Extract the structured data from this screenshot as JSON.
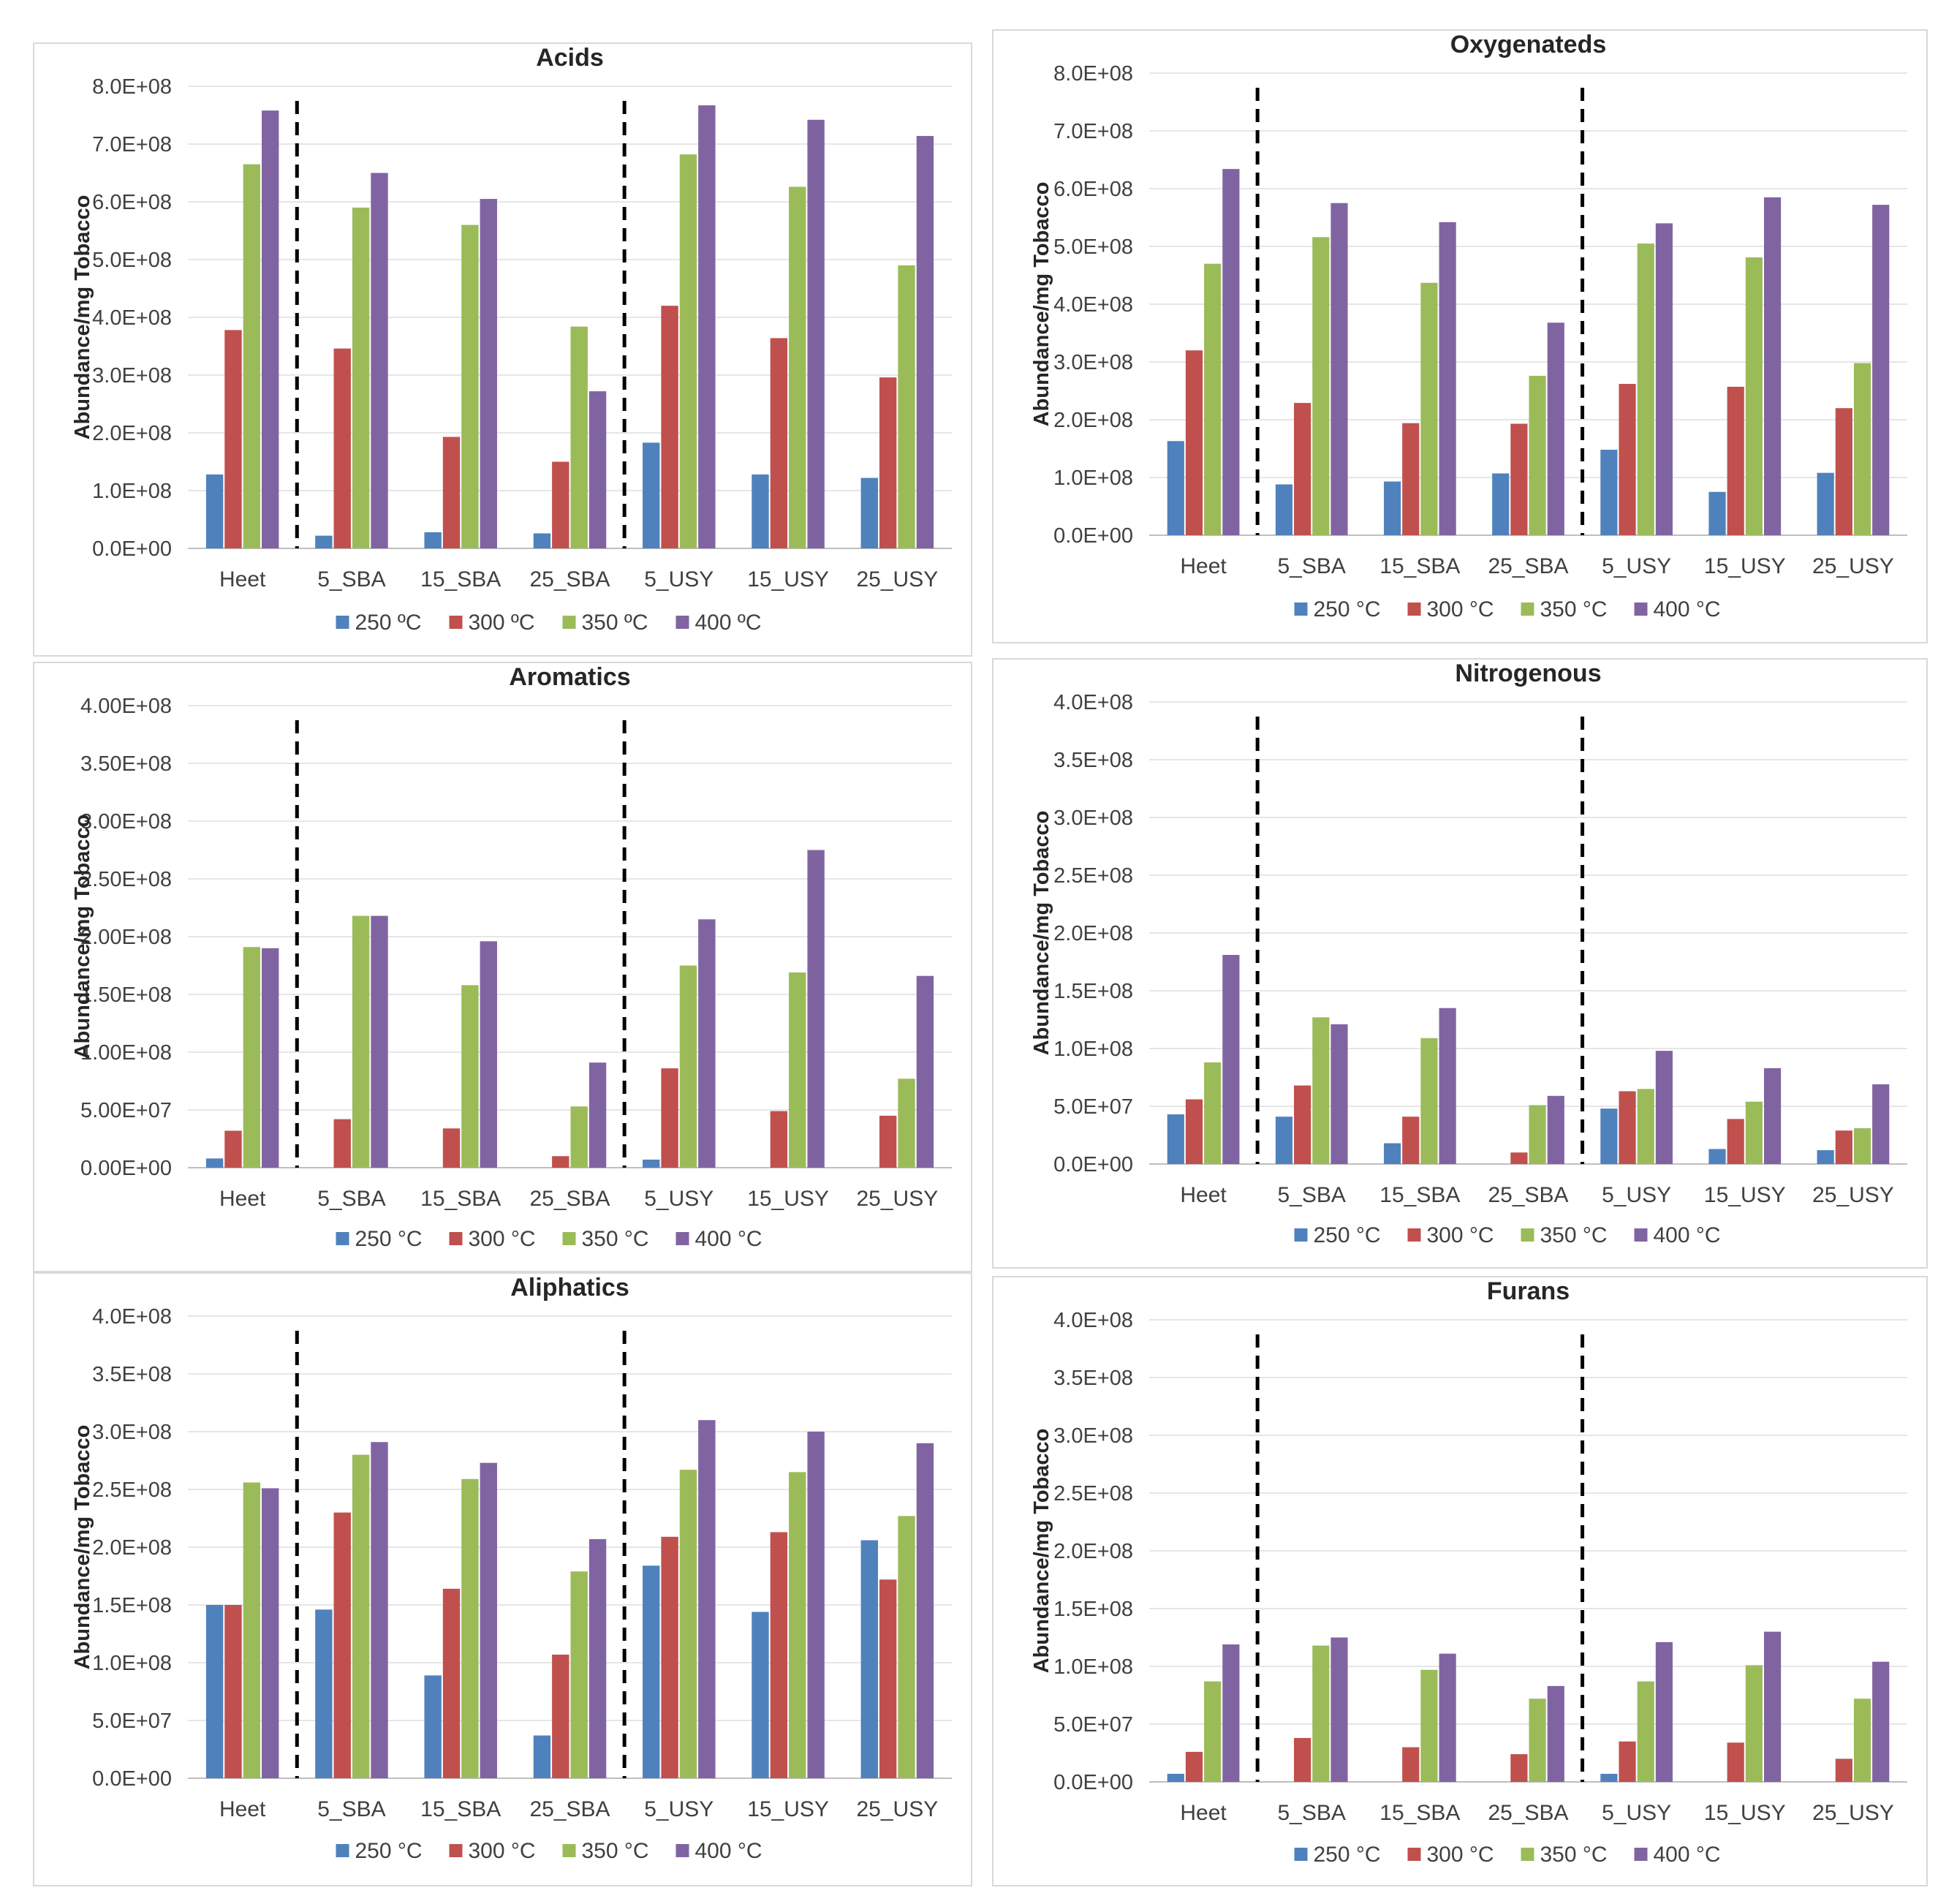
{
  "chart_data": [
    {
      "type": "bar",
      "title": "Acids",
      "ylabel": "Abundance/mg Tobacco",
      "xlabel": "",
      "ylim": [
        0,
        800000000
      ],
      "yticks": [
        "0.0E+00",
        "1.0E+08",
        "2.0E+08",
        "3.0E+08",
        "4.0E+08",
        "5.0E+08",
        "6.0E+08",
        "7.0E+08",
        "8.0E+08"
      ],
      "categories": [
        "Heet",
        "5_SBA",
        "15_SBA",
        "25_SBA",
        "5_USY",
        "15_USY",
        "25_USY"
      ],
      "separators_after": [
        "Heet",
        "25_SBA"
      ],
      "legend_position": "bottom",
      "series": [
        {
          "name": "250 ºC",
          "color": "#4f81bd",
          "values": [
            128000000,
            22000000,
            28000000,
            26000000,
            183000000,
            128000000,
            122000000
          ]
        },
        {
          "name": "300 ºC",
          "color": "#c0504d",
          "values": [
            378000000,
            346000000,
            193000000,
            150000000,
            420000000,
            364000000,
            296000000
          ]
        },
        {
          "name": "350 ºC",
          "color": "#9bbb59",
          "values": [
            665000000,
            590000000,
            560000000,
            384000000,
            682000000,
            626000000,
            490000000
          ]
        },
        {
          "name": "400 ºC",
          "color": "#8064a2",
          "values": [
            758000000,
            650000000,
            605000000,
            272000000,
            767000000,
            742000000,
            714000000
          ]
        }
      ]
    },
    {
      "type": "bar",
      "title": "Oxygenateds",
      "ylabel": "Abundance/mg Tobacco",
      "xlabel": "",
      "ylim": [
        0,
        800000000
      ],
      "yticks": [
        "0.0E+00",
        "1.0E+08",
        "2.0E+08",
        "3.0E+08",
        "4.0E+08",
        "5.0E+08",
        "6.0E+08",
        "7.0E+08",
        "8.0E+08"
      ],
      "categories": [
        "Heet",
        "5_SBA",
        "15_SBA",
        "25_SBA",
        "5_USY",
        "15_USY",
        "25_USY"
      ],
      "separators_after": [
        "Heet",
        "25_SBA"
      ],
      "legend_position": "bottom",
      "series": [
        {
          "name": "250 °C",
          "color": "#4f81bd",
          "values": [
            163000000,
            88000000,
            93000000,
            107000000,
            148000000,
            75000000,
            108000000
          ]
        },
        {
          "name": "300 °C",
          "color": "#c0504d",
          "values": [
            320000000,
            229000000,
            194000000,
            193000000,
            262000000,
            257000000,
            220000000
          ]
        },
        {
          "name": "350 °C",
          "color": "#9bbb59",
          "values": [
            470000000,
            516000000,
            437000000,
            276000000,
            505000000,
            481000000,
            298000000
          ]
        },
        {
          "name": "400 °C",
          "color": "#8064a2",
          "values": [
            634000000,
            575000000,
            542000000,
            368000000,
            540000000,
            585000000,
            572000000
          ]
        }
      ]
    },
    {
      "type": "bar",
      "title": "Aromatics",
      "ylabel": "Abundance/mg Tobacco",
      "xlabel": "",
      "ylim": [
        0,
        400000000
      ],
      "yticks": [
        "0.00E+00",
        "5.00E+07",
        "1.00E+08",
        "1.50E+08",
        "2.00E+08",
        "2.50E+08",
        "3.00E+08",
        "3.50E+08",
        "4.00E+08"
      ],
      "categories": [
        "Heet",
        "5_SBA",
        "15_SBA",
        "25_SBA",
        "5_USY",
        "15_USY",
        "25_USY"
      ],
      "separators_after": [
        "Heet",
        "25_SBA"
      ],
      "legend_position": "bottom",
      "series": [
        {
          "name": "250 °C",
          "color": "#4f81bd",
          "values": [
            8000000,
            0,
            0,
            0,
            7000000,
            0,
            0
          ]
        },
        {
          "name": "300 °C",
          "color": "#c0504d",
          "values": [
            32000000,
            42000000,
            34000000,
            10000000,
            86000000,
            49000000,
            45000000
          ]
        },
        {
          "name": "350 °C",
          "color": "#9bbb59",
          "values": [
            191000000,
            218000000,
            158000000,
            53000000,
            175000000,
            169000000,
            77000000
          ]
        },
        {
          "name": "400 °C",
          "color": "#8064a2",
          "values": [
            190000000,
            218000000,
            196000000,
            91000000,
            215000000,
            275000000,
            166000000
          ]
        }
      ]
    },
    {
      "type": "bar",
      "title": "Nitrogenous",
      "ylabel": "Abundance/mg Tobacco",
      "xlabel": "",
      "ylim": [
        0,
        400000000
      ],
      "yticks": [
        "0.0E+00",
        "5.0E+07",
        "1.0E+08",
        "1.5E+08",
        "2.0E+08",
        "2.5E+08",
        "3.0E+08",
        "3.5E+08",
        "4.0E+08"
      ],
      "categories": [
        "Heet",
        "5_SBA",
        "15_SBA",
        "25_SBA",
        "5_USY",
        "15_USY",
        "25_USY"
      ],
      "separators_after": [
        "Heet",
        "25_SBA"
      ],
      "legend_position": "bottom",
      "series": [
        {
          "name": "250 °C",
          "color": "#4f81bd",
          "values": [
            43000000,
            41000000,
            18000000,
            0,
            48000000,
            13000000,
            12000000
          ]
        },
        {
          "name": "300 °C",
          "color": "#c0504d",
          "values": [
            56000000,
            68000000,
            41000000,
            10000000,
            63000000,
            39000000,
            29000000
          ]
        },
        {
          "name": "350 °C",
          "color": "#9bbb59",
          "values": [
            88000000,
            127000000,
            109000000,
            51000000,
            65000000,
            54000000,
            31000000
          ]
        },
        {
          "name": "400 °C",
          "color": "#8064a2",
          "values": [
            181000000,
            121000000,
            135000000,
            59000000,
            98000000,
            83000000,
            69000000
          ]
        }
      ]
    },
    {
      "type": "bar",
      "title": "Aliphatics",
      "ylabel": "Abundance/mg Tobacco",
      "xlabel": "",
      "ylim": [
        0,
        400000000
      ],
      "yticks": [
        "0.0E+00",
        "5.0E+07",
        "1.0E+08",
        "1.5E+08",
        "2.0E+08",
        "2.5E+08",
        "3.0E+08",
        "3.5E+08",
        "4.0E+08"
      ],
      "categories": [
        "Heet",
        "5_SBA",
        "15_SBA",
        "25_SBA",
        "5_USY",
        "15_USY",
        "25_USY"
      ],
      "separators_after": [
        "Heet",
        "25_SBA"
      ],
      "legend_position": "bottom",
      "series": [
        {
          "name": "250 °C",
          "color": "#4f81bd",
          "values": [
            150000000,
            146000000,
            89000000,
            37000000,
            184000000,
            144000000,
            206000000
          ]
        },
        {
          "name": "300 °C",
          "color": "#c0504d",
          "values": [
            150000000,
            230000000,
            164000000,
            107000000,
            209000000,
            213000000,
            172000000
          ]
        },
        {
          "name": "350 °C",
          "color": "#9bbb59",
          "values": [
            256000000,
            280000000,
            259000000,
            179000000,
            267000000,
            265000000,
            227000000
          ]
        },
        {
          "name": "400 °C",
          "color": "#8064a2",
          "values": [
            251000000,
            291000000,
            273000000,
            207000000,
            310000000,
            300000000,
            290000000
          ]
        }
      ]
    },
    {
      "type": "bar",
      "title": "Furans",
      "ylabel": "Abundance/mg Tobacco",
      "xlabel": "",
      "ylim": [
        0,
        400000000
      ],
      "yticks": [
        "0.0E+00",
        "5.0E+07",
        "1.0E+08",
        "1.5E+08",
        "2.0E+08",
        "2.5E+08",
        "3.0E+08",
        "3.5E+08",
        "4.0E+08"
      ],
      "categories": [
        "Heet",
        "5_SBA",
        "15_SBA",
        "25_SBA",
        "5_USY",
        "15_USY",
        "25_USY"
      ],
      "separators_after": [
        "Heet",
        "25_SBA"
      ],
      "legend_position": "bottom",
      "series": [
        {
          "name": "250 °C",
          "color": "#4f81bd",
          "values": [
            7000000,
            0,
            0,
            0,
            7000000,
            0,
            0
          ]
        },
        {
          "name": "300 °C",
          "color": "#c0504d",
          "values": [
            26000000,
            38000000,
            30000000,
            24000000,
            35000000,
            34000000,
            20000000
          ]
        },
        {
          "name": "350 °C",
          "color": "#9bbb59",
          "values": [
            87000000,
            118000000,
            97000000,
            72000000,
            87000000,
            101000000,
            72000000
          ]
        },
        {
          "name": "400 °C",
          "color": "#8064a2",
          "values": [
            119000000,
            125000000,
            111000000,
            83000000,
            121000000,
            130000000,
            104000000
          ]
        }
      ]
    }
  ]
}
